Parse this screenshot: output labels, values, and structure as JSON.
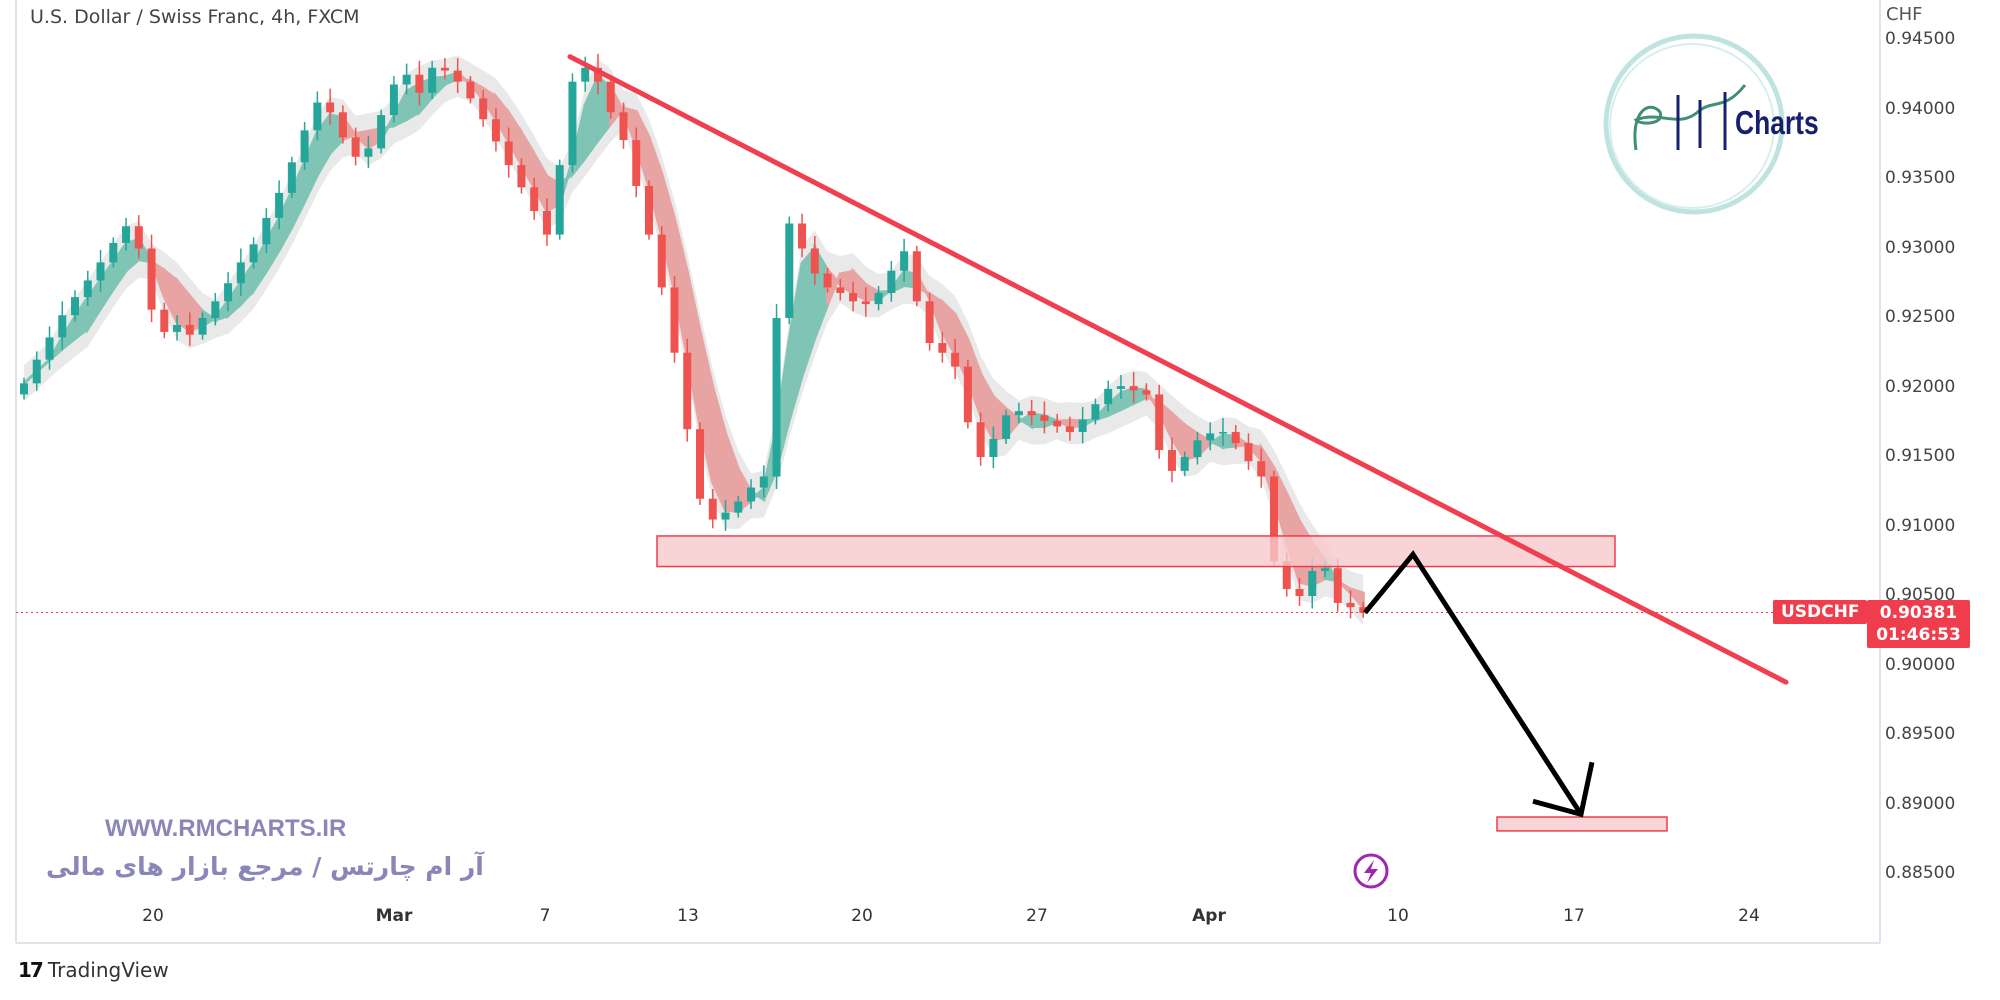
{
  "header": {
    "title": "U.S. Dollar / Swiss Franc, 4h, FXCM",
    "axis_unit": "CHF"
  },
  "symbol_badge": "USDCHF",
  "last_price": "0.90381",
  "countdown": "01:46:53",
  "watermark": {
    "url": "WWW.RMCHARTS.IR",
    "tagline": "آر ام چارتس / مرجع بازار های مالی",
    "logo_text": "Charts"
  },
  "footer": {
    "brand": "TradingView"
  },
  "colors": {
    "up": "#26a69a",
    "down": "#ef5350",
    "trendline": "#f0404f",
    "zone_fill": "#f8c9cc",
    "zone_border": "#ef3d4d",
    "watermark": "#8a86b8",
    "lightning": "#9c27b0"
  },
  "icons": [
    "lightning-icon",
    "tradingview-logo-icon",
    "rm-charts-logo"
  ],
  "chart_data": {
    "type": "candlestick",
    "title": "U.S. Dollar / Swiss Franc, 4h, FXCM",
    "ylim": [
      0.8825,
      0.9465
    ],
    "y_ticks": [
      "0.94500",
      "0.94000",
      "0.93500",
      "0.93000",
      "0.92500",
      "0.92000",
      "0.91500",
      "0.91000",
      "0.90500",
      "0.90000",
      "0.89500",
      "0.89000",
      "0.88500"
    ],
    "x_ticks": [
      "20",
      "Mar",
      "7",
      "13",
      "20",
      "27",
      "Apr",
      "10",
      "17",
      "24"
    ],
    "closes": [
      0.9203,
      0.922,
      0.9236,
      0.9252,
      0.9265,
      0.9277,
      0.929,
      0.9304,
      0.9316,
      0.93,
      0.9256,
      0.924,
      0.9245,
      0.9238,
      0.925,
      0.9262,
      0.9275,
      0.929,
      0.9303,
      0.9322,
      0.934,
      0.9362,
      0.9385,
      0.9405,
      0.9398,
      0.938,
      0.9366,
      0.9372,
      0.9396,
      0.9418,
      0.9425,
      0.9412,
      0.943,
      0.9428,
      0.942,
      0.9408,
      0.9393,
      0.9377,
      0.936,
      0.9344,
      0.9327,
      0.931,
      0.936,
      0.942,
      0.943,
      0.942,
      0.9398,
      0.9378,
      0.9345,
      0.931,
      0.9272,
      0.9225,
      0.917,
      0.912,
      0.9105,
      0.911,
      0.9118,
      0.9128,
      0.9136,
      0.925,
      0.9318,
      0.93,
      0.9282,
      0.9272,
      0.9268,
      0.9262,
      0.926,
      0.9268,
      0.9284,
      0.9298,
      0.9262,
      0.9232,
      0.9225,
      0.9215,
      0.9175,
      0.915,
      0.9163,
      0.918,
      0.9183,
      0.918,
      0.9176,
      0.9172,
      0.9168,
      0.9177,
      0.9188,
      0.9199,
      0.9201,
      0.9198,
      0.9195,
      0.9155,
      0.914,
      0.915,
      0.9162,
      0.9167,
      0.9168,
      0.916,
      0.9147,
      0.9136,
      0.9075,
      0.9055,
      0.905,
      0.9068,
      0.907,
      0.9045,
      0.9042,
      0.9038
    ],
    "last_price": 0.90381,
    "annotations": {
      "trendline": {
        "from_price": 0.9438,
        "to_price": 0.8988
      },
      "resistance_zone": {
        "top": 0.90932,
        "bottom": 0.90712
      },
      "target_zone": {
        "top": 0.8891,
        "bottom": 0.8881
      },
      "projection_path_prices": [
        0.9038,
        0.908,
        0.8893
      ]
    },
    "grid": false
  }
}
